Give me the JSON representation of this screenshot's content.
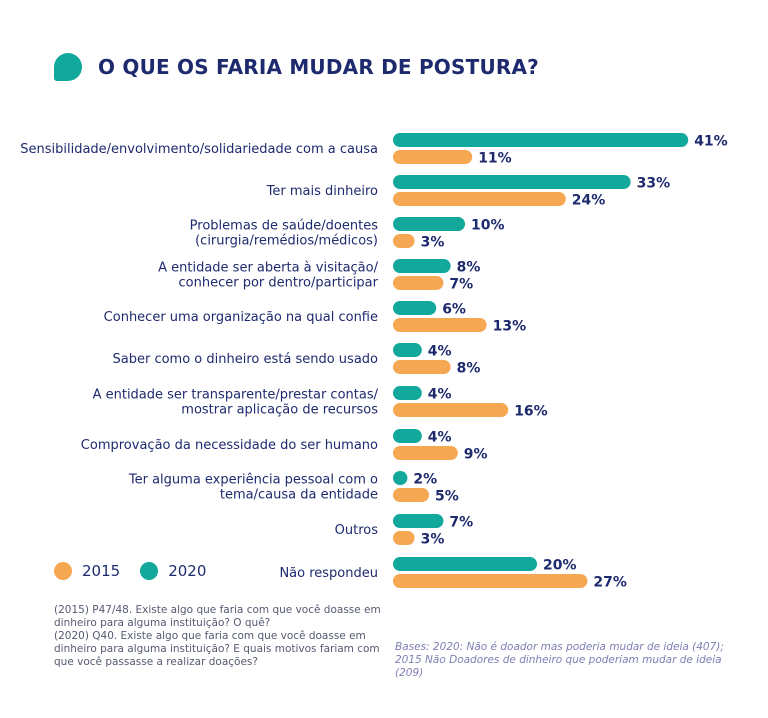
{
  "title": "O QUE OS FARIA MUDAR DE POSTURA?",
  "colors": {
    "y2020": "#12a89b",
    "y2015": "#f6a752",
    "text": "#1e2a6e"
  },
  "legend": [
    {
      "label": "2015",
      "color": "#f6a752"
    },
    {
      "label": "2020",
      "color": "#12a89b"
    }
  ],
  "footnote": {
    "line1": "(2015) P47/48. Existe algo que faria com que você doasse em dinheiro para alguma instituição? O quê?",
    "line2": "(2020) Q40. Existe algo que faria com que você doasse em dinheiro para alguma instituição? E quais motivos fariam com que você passasse a realizar doações?"
  },
  "bases": "Bases: 2020: Não é doador mas poderia mudar de ideia (407); 2015 Não Doadores de dinheiro que poderiam mudar de ideia (209)",
  "chart_data": {
    "type": "bar",
    "orientation": "horizontal",
    "categories": [
      [
        "Sensibilidade/envolvimento/solidariedade com a causa"
      ],
      [
        "Ter mais dinheiro"
      ],
      [
        "Problemas de saúde/doentes",
        "(cirurgia/remédios/médicos)"
      ],
      [
        "A entidade ser aberta à visitação/",
        "conhecer por dentro/participar"
      ],
      [
        "Conhecer uma organização na qual confie"
      ],
      [
        "Saber como o dinheiro está sendo usado"
      ],
      [
        "A entidade ser transparente/prestar contas/",
        "mostrar aplicação de recursos"
      ],
      [
        "Comprovação da necessidade do ser humano"
      ],
      [
        "Ter alguma experiência pessoal com o",
        "tema/causa da entidade"
      ],
      [
        "Outros"
      ],
      [
        "Não respondeu"
      ]
    ],
    "series": [
      {
        "name": "2020",
        "values": [
          41,
          33,
          10,
          8,
          6,
          4,
          4,
          4,
          2,
          7,
          20
        ]
      },
      {
        "name": "2015",
        "values": [
          11,
          24,
          3,
          7,
          13,
          8,
          16,
          9,
          5,
          3,
          27
        ]
      }
    ],
    "value_suffix": "%"
  }
}
